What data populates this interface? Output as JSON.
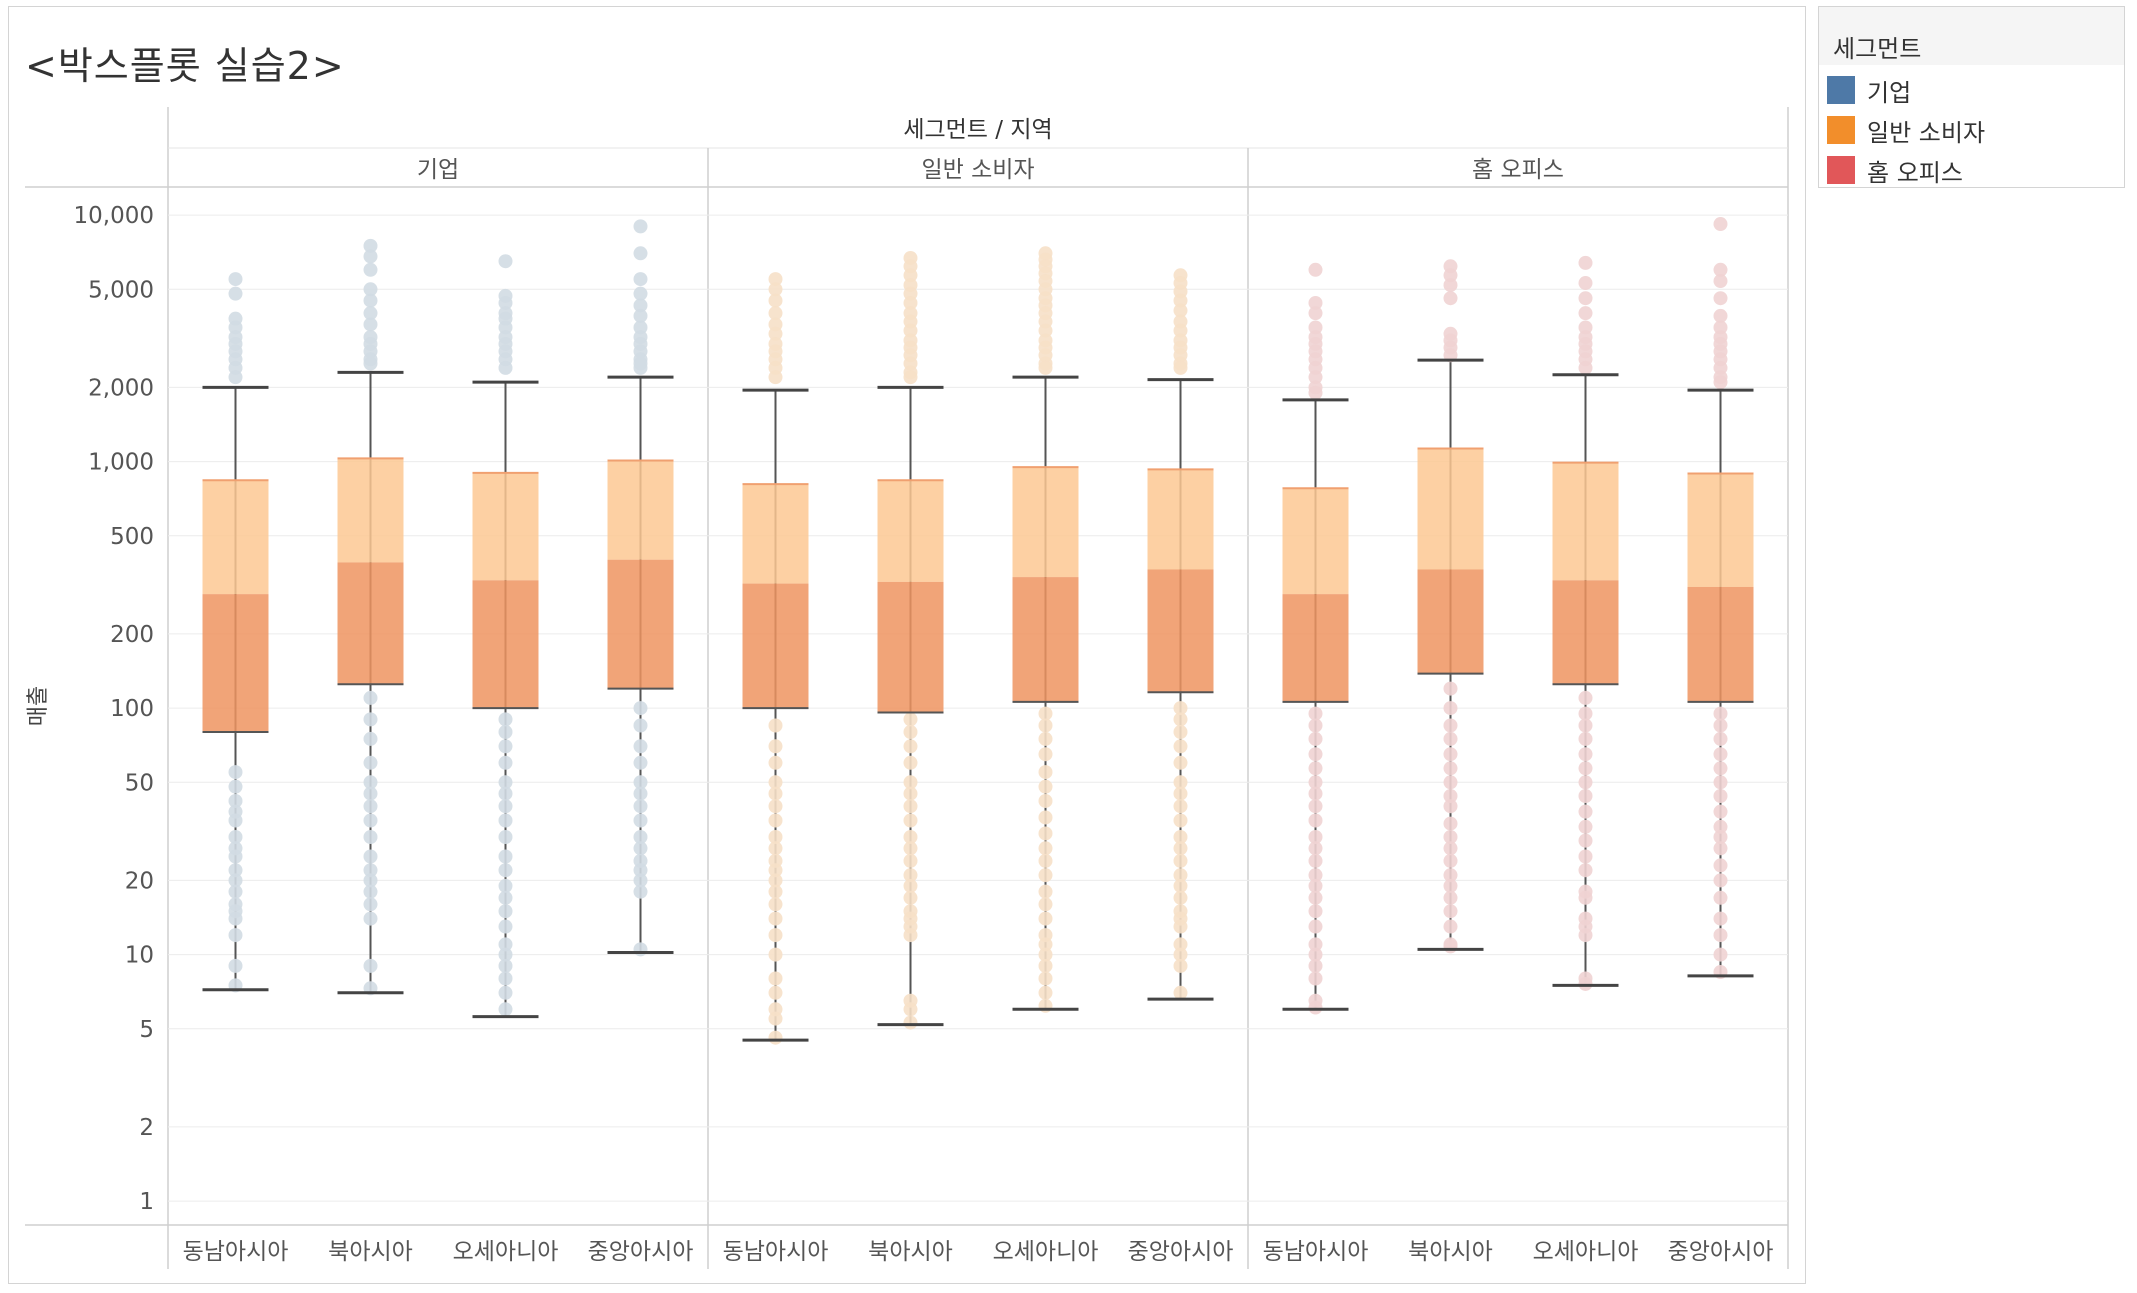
{
  "title": "<박스플롯 실습2>",
  "legend": {
    "title": "세그먼트",
    "items": [
      {
        "label": "기업",
        "color": "#4e79a7"
      },
      {
        "label": "일반 소비자",
        "color": "#f28e2b"
      },
      {
        "label": "홈 오피스",
        "color": "#e15759"
      }
    ]
  },
  "chart_data": {
    "type": "box",
    "column_header": "세그먼트 / 지역",
    "ylabel": "매출",
    "y_scale": "log",
    "ylim": [
      0.8,
      13000
    ],
    "y_ticks": [
      {
        "v": 1,
        "label": "1"
      },
      {
        "v": 2,
        "label": "2"
      },
      {
        "v": 5,
        "label": "5"
      },
      {
        "v": 10,
        "label": "10"
      },
      {
        "v": 20,
        "label": "20"
      },
      {
        "v": 50,
        "label": "50"
      },
      {
        "v": 100,
        "label": "100"
      },
      {
        "v": 200,
        "label": "200"
      },
      {
        "v": 500,
        "label": "500"
      },
      {
        "v": 1000,
        "label": "1,000"
      },
      {
        "v": 2000,
        "label": "2,000"
      },
      {
        "v": 5000,
        "label": "5,000"
      },
      {
        "v": 10000,
        "label": "10,000"
      }
    ],
    "box_upper_color": "#fdc893",
    "box_lower_color": "#ee9460",
    "panels": [
      {
        "segment": "기업",
        "point_color": "#d2dbe3",
        "regions": [
          {
            "name": "동남아시아",
            "whisker_low": 7.2,
            "q1": 80,
            "median": 290,
            "q3": 840,
            "whisker_high": 2000,
            "points": [
              5500,
              4800,
              3800,
              3500,
              3200,
              3000,
              2800,
              2600,
              2400,
              2200,
              55,
              48,
              42,
              38,
              35,
              30,
              27,
              25,
              22,
              20,
              18,
              16,
              15,
              14,
              12,
              9,
              7.5
            ]
          },
          {
            "name": "북아시아",
            "whisker_low": 7.0,
            "q1": 125,
            "median": 390,
            "q3": 1030,
            "whisker_high": 2300,
            "points": [
              7500,
              6800,
              6000,
              5000,
              4500,
              4000,
              3600,
              3200,
              3000,
              2800,
              2600,
              2500,
              110,
              90,
              75,
              60,
              50,
              45,
              40,
              35,
              30,
              25,
              22,
              20,
              18,
              16,
              14,
              9,
              7.3
            ]
          },
          {
            "name": "오세아니아",
            "whisker_low": 5.6,
            "q1": 100,
            "median": 330,
            "q3": 900,
            "whisker_high": 2100,
            "points": [
              6500,
              4700,
              4400,
              4000,
              3800,
              3500,
              3200,
              3000,
              2800,
              2600,
              2400,
              90,
              80,
              70,
              60,
              50,
              45,
              40,
              35,
              30,
              25,
              22,
              19,
              17,
              15,
              13,
              11,
              10,
              9,
              8,
              7,
              6
            ]
          },
          {
            "name": "중앙아시아",
            "whisker_low": 10.2,
            "q1": 120,
            "median": 400,
            "q3": 1010,
            "whisker_high": 2200,
            "points": [
              9000,
              7000,
              5500,
              4800,
              4300,
              3900,
              3500,
              3200,
              3000,
              2800,
              2600,
              2500,
              2400,
              100,
              85,
              70,
              60,
              50,
              45,
              40,
              35,
              30,
              27,
              24,
              22,
              20,
              18,
              10.5
            ]
          }
        ]
      },
      {
        "segment": "일반 소비자",
        "point_color": "#f6e0c8",
        "regions": [
          {
            "name": "동남아시아",
            "whisker_low": 4.5,
            "q1": 100,
            "median": 320,
            "q3": 810,
            "whisker_high": 1950,
            "points": [
              5500,
              5000,
              4500,
              4000,
              3600,
              3300,
              3000,
              2800,
              2600,
              2400,
              2200,
              85,
              70,
              60,
              50,
              45,
              40,
              35,
              30,
              27,
              24,
              22,
              20,
              18,
              16,
              14,
              12,
              10,
              8,
              7,
              6,
              5.5,
              4.6
            ]
          },
          {
            "name": "북아시아",
            "whisker_low": 5.2,
            "q1": 96,
            "median": 325,
            "q3": 840,
            "whisker_high": 2000,
            "points": [
              6700,
              6200,
              5700,
              5200,
              4800,
              4400,
              4000,
              3700,
              3400,
              3100,
              2900,
              2700,
              2500,
              2300,
              2200,
              90,
              80,
              70,
              60,
              50,
              45,
              40,
              35,
              30,
              27,
              24,
              21,
              19,
              17,
              15,
              14,
              13,
              12,
              6.5,
              6,
              5.3
            ]
          },
          {
            "name": "오세아니아",
            "whisker_low": 6.0,
            "q1": 106,
            "median": 340,
            "q3": 950,
            "whisker_high": 2200,
            "points": [
              7000,
              6600,
              6200,
              5800,
              5400,
              5000,
              4600,
              4300,
              4000,
              3700,
              3400,
              3100,
              2900,
              2700,
              2500,
              2400,
              95,
              85,
              75,
              65,
              55,
              48,
              42,
              36,
              31,
              27,
              24,
              21,
              18,
              16,
              14,
              12,
              11,
              10,
              9,
              8,
              7,
              6.2
            ]
          },
          {
            "name": "중앙아시아",
            "whisker_low": 6.6,
            "q1": 116,
            "median": 365,
            "q3": 930,
            "whisker_high": 2150,
            "points": [
              5700,
              5300,
              4900,
              4500,
              4100,
              3700,
              3400,
              3100,
              2900,
              2700,
              2500,
              2400,
              100,
              90,
              80,
              70,
              60,
              50,
              45,
              40,
              35,
              30,
              27,
              24,
              21,
              19,
              17,
              15,
              14,
              13,
              11,
              10,
              9,
              7
            ]
          }
        ]
      },
      {
        "segment": "홈 오피스",
        "point_color": "#efd3d3",
        "regions": [
          {
            "name": "동남아시아",
            "whisker_low": 6.0,
            "q1": 106,
            "median": 290,
            "q3": 780,
            "whisker_high": 1780,
            "points": [
              6000,
              4400,
              4000,
              3500,
              3200,
              3000,
              2800,
              2600,
              2400,
              2200,
              2000,
              1900,
              95,
              85,
              75,
              65,
              57,
              50,
              45,
              40,
              35,
              30,
              27,
              24,
              21,
              19,
              17,
              15,
              13,
              11,
              10,
              9,
              8,
              6.5,
              6.1
            ]
          },
          {
            "name": "북아시아",
            "whisker_low": 10.5,
            "q1": 138,
            "median": 365,
            "q3": 1130,
            "whisker_high": 2580,
            "points": [
              6200,
              5700,
              5200,
              4600,
              3300,
              3100,
              2900,
              2700,
              120,
              100,
              85,
              75,
              65,
              57,
              50,
              44,
              40,
              34,
              30,
              27,
              24,
              21,
              19,
              17,
              15,
              13,
              11,
              10.8
            ]
          },
          {
            "name": "오세아니아",
            "whisker_low": 7.5,
            "q1": 125,
            "median": 330,
            "q3": 990,
            "whisker_high": 2250,
            "points": [
              6400,
              5300,
              4600,
              4000,
              3500,
              3200,
              3000,
              2800,
              2600,
              2400,
              110,
              95,
              85,
              75,
              65,
              57,
              50,
              44,
              38,
              33,
              29,
              25,
              22,
              18,
              17,
              14,
              13,
              12,
              8,
              7.6
            ]
          },
          {
            "name": "중앙아시아",
            "whisker_low": 8.2,
            "q1": 106,
            "median": 310,
            "q3": 895,
            "whisker_high": 1950,
            "points": [
              9200,
              6000,
              5400,
              4600,
              3900,
              3500,
              3200,
              3000,
              2800,
              2600,
              2400,
              2200,
              2100,
              95,
              85,
              75,
              65,
              57,
              50,
              44,
              38,
              33,
              30,
              27,
              23,
              20,
              17,
              14,
              12,
              10,
              8.5
            ]
          }
        ]
      }
    ]
  }
}
